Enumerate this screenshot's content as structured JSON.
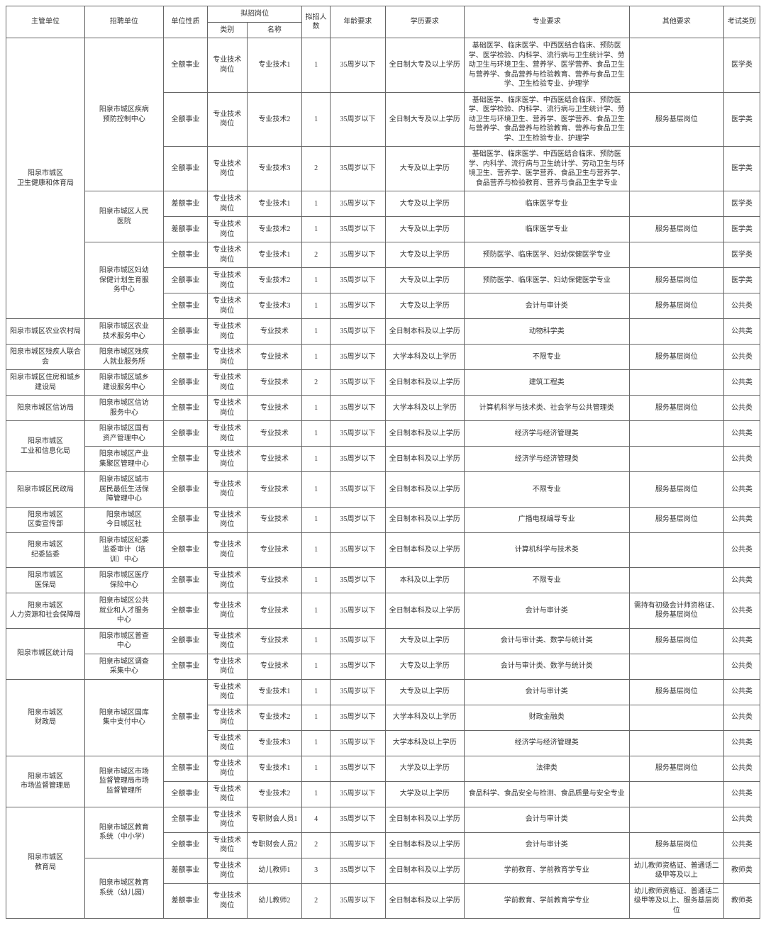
{
  "headers": {
    "dept": "主管单位",
    "unit": "招聘单位",
    "nature": "单位性质",
    "post_group": "拟招岗位",
    "category": "类别",
    "post_name": "名称",
    "num": "拟招人数",
    "age": "年龄要求",
    "edu": "学历要求",
    "major": "专业要求",
    "other": "其他要求",
    "exam": "考试类别"
  },
  "rows": [
    {
      "dept": "阳泉市城区\n卫生健康和体育局",
      "dept_rowspan": 8,
      "unit": "阳泉市城区疾病\n预防控制中心",
      "unit_rowspan": 3,
      "nature": "全额事业",
      "cat": "专业技术\n岗位",
      "post": "专业技术1",
      "num": "1",
      "age": "35周岁以下",
      "edu": "全日制大专及以上学历",
      "major": "基础医学、临床医学、中西医结合临床、预防医学、医学检验、内科学、流行病与卫生统计学、劳动卫生与环境卫生、营养学、医学营养、食品卫生与营养学、食品营养与检验教育、营养与食品卫生学、卫生检验专业、护理学",
      "other": "",
      "exam": "医学类"
    },
    {
      "nature": "全额事业",
      "cat": "专业技术\n岗位",
      "post": "专业技术2",
      "num": "1",
      "age": "35周岁以下",
      "edu": "全日制大专及以上学历",
      "major": "基础医学、临床医学、中西医结合临床、预防医学、医学检验、内科学、流行病与卫生统计学、劳动卫生与环境卫生、营养学、医学营养、食品卫生与营养学、食品营养与检验教育、营养与食品卫生学、卫生检验专业、护理学",
      "other": "服务基层岗位",
      "exam": "医学类"
    },
    {
      "nature": "全额事业",
      "cat": "专业技术\n岗位",
      "post": "专业技术3",
      "num": "2",
      "age": "35周岁以下",
      "edu": "大专及以上学历",
      "major": "基础医学、临床医学、中西医结合临床、预防医学、内科学、流行病与卫生统计学、劳动卫生与环境卫生、营养学、医学营养、食品卫生与营养学、食品营养与检验教育、营养与食品卫生学专业",
      "other": "",
      "exam": "医学类"
    },
    {
      "unit": "阳泉市城区人民\n医院",
      "unit_rowspan": 2,
      "nature": "差额事业",
      "cat": "专业技术\n岗位",
      "post": "专业技术1",
      "num": "1",
      "age": "35周岁以下",
      "edu": "大专及以上学历",
      "major": "临床医学专业",
      "other": "",
      "exam": "医学类"
    },
    {
      "nature": "差额事业",
      "cat": "专业技术\n岗位",
      "post": "专业技术2",
      "num": "1",
      "age": "35周岁以下",
      "edu": "大专及以上学历",
      "major": "临床医学专业",
      "other": "服务基层岗位",
      "exam": "医学类"
    },
    {
      "unit": "阳泉市城区妇幼\n保健计划生育服\n务中心",
      "unit_rowspan": 3,
      "nature": "全额事业",
      "cat": "专业技术\n岗位",
      "post": "专业技术1",
      "num": "2",
      "age": "35周岁以下",
      "edu": "大专及以上学历",
      "major": "预防医学、临床医学、妇幼保健医学专业",
      "other": "",
      "exam": "医学类"
    },
    {
      "nature": "全额事业",
      "cat": "专业技术\n岗位",
      "post": "专业技术2",
      "num": "1",
      "age": "35周岁以下",
      "edu": "大专及以上学历",
      "major": "预防医学、临床医学、妇幼保健医学专业",
      "other": "服务基层岗位",
      "exam": "医学类"
    },
    {
      "nature": "全额事业",
      "cat": "专业技术\n岗位",
      "post": "专业技术3",
      "num": "1",
      "age": "35周岁以下",
      "edu": "大专及以上学历",
      "major": "会计与审计类",
      "other": "服务基层岗位",
      "exam": "公共类"
    },
    {
      "dept": "阳泉市城区农业农村局",
      "dept_rowspan": 1,
      "unit": "阳泉市城区农业\n技术服务中心",
      "unit_rowspan": 1,
      "nature": "全额事业",
      "cat": "专业技术\n岗位",
      "post": "专业技术",
      "num": "1",
      "age": "35周岁以下",
      "edu": "全日制本科及以上学历",
      "major": "动物科学类",
      "other": "",
      "exam": "公共类"
    },
    {
      "dept": "阳泉市城区残疾人联合会",
      "dept_rowspan": 1,
      "unit": "阳泉市城区残疾\n人就业服务所",
      "unit_rowspan": 1,
      "nature": "全额事业",
      "cat": "专业技术\n岗位",
      "post": "专业技术",
      "num": "1",
      "age": "35周岁以下",
      "edu": "大学本科及以上学历",
      "major": "不限专业",
      "other": "服务基层岗位",
      "exam": "公共类"
    },
    {
      "dept": "阳泉市城区住房和城乡建设局",
      "dept_rowspan": 1,
      "unit": "阳泉市城区城乡\n建设服务中心",
      "unit_rowspan": 1,
      "nature": "全额事业",
      "cat": "专业技术\n岗位",
      "post": "专业技术",
      "num": "2",
      "age": "35周岁以下",
      "edu": "全日制本科及以上学历",
      "major": "建筑工程类",
      "other": "",
      "exam": "公共类"
    },
    {
      "dept": "阳泉市城区信访局",
      "dept_rowspan": 1,
      "unit": "阳泉市城区信访\n服务中心",
      "unit_rowspan": 1,
      "nature": "全额事业",
      "cat": "专业技术\n岗位",
      "post": "专业技术",
      "num": "1",
      "age": "35周岁以下",
      "edu": "大学本科及以上学历",
      "major": "计算机科学与技术类、社会学与公共管理类",
      "other": "服务基层岗位",
      "exam": "公共类"
    },
    {
      "dept": "阳泉市城区\n工业和信息化局",
      "dept_rowspan": 2,
      "unit": "阳泉市城区国有\n资产管理中心",
      "unit_rowspan": 1,
      "nature": "全额事业",
      "cat": "专业技术\n岗位",
      "post": "专业技术",
      "num": "1",
      "age": "35周岁以下",
      "edu": "全日制本科及以上学历",
      "major": "经济学与经济管理类",
      "other": "",
      "exam": "公共类"
    },
    {
      "unit": "阳泉市城区产业\n集聚区管理中心",
      "unit_rowspan": 1,
      "nature": "全额事业",
      "cat": "专业技术\n岗位",
      "post": "专业技术",
      "num": "1",
      "age": "35周岁以下",
      "edu": "全日制本科及以上学历",
      "major": "经济学与经济管理类",
      "other": "",
      "exam": "公共类"
    },
    {
      "dept": "阳泉市城区民政局",
      "dept_rowspan": 1,
      "unit": "阳泉市城区城市\n居民最低生活保\n障管理中心",
      "unit_rowspan": 1,
      "nature": "全额事业",
      "cat": "专业技术\n岗位",
      "post": "专业技术",
      "num": "1",
      "age": "35周岁以下",
      "edu": "全日制本科及以上学历",
      "major": "不限专业",
      "other": "服务基层岗位",
      "exam": "公共类"
    },
    {
      "dept": "阳泉市城区\n区委宣传部",
      "dept_rowspan": 1,
      "unit": "阳泉市城区\n今日城区社",
      "unit_rowspan": 1,
      "nature": "全额事业",
      "cat": "专业技术\n岗位",
      "post": "专业技术",
      "num": "1",
      "age": "35周岁以下",
      "edu": "全日制本科及以上学历",
      "major": "广播电视编导专业",
      "other": "服务基层岗位",
      "exam": "公共类"
    },
    {
      "dept": "阳泉市城区\n纪委监委",
      "dept_rowspan": 1,
      "unit": "阳泉市城区纪委\n监委审计（培\n训）中心",
      "unit_rowspan": 1,
      "nature": "全额事业",
      "cat": "专业技术\n岗位",
      "post": "专业技术",
      "num": "1",
      "age": "35周岁以下",
      "edu": "全日制本科及以上学历",
      "major": "计算机科学与技术类",
      "other": "",
      "exam": "公共类"
    },
    {
      "dept": "阳泉市城区\n医保局",
      "dept_rowspan": 1,
      "unit": "阳泉市城区医疗\n保险中心",
      "unit_rowspan": 1,
      "nature": "全额事业",
      "cat": "专业技术\n岗位",
      "post": "专业技术",
      "num": "1",
      "age": "35周岁以下",
      "edu": "本科及以上学历",
      "major": "不限专业",
      "other": "",
      "exam": "公共类"
    },
    {
      "dept": "阳泉市城区\n人力资源和社会保障局",
      "dept_rowspan": 1,
      "unit": "阳泉市城区公共\n就业和人才服务\n中心",
      "unit_rowspan": 1,
      "nature": "全额事业",
      "cat": "专业技术\n岗位",
      "post": "专业技术",
      "num": "1",
      "age": "35周岁以下",
      "edu": "全日制本科及以上学历",
      "major": "会计与审计类",
      "other": "需持有初级会计师资格证、服务基层岗位",
      "exam": "公共类"
    },
    {
      "dept": "阳泉市城区统计局",
      "dept_rowspan": 2,
      "unit": "阳泉市城区普查\n中心",
      "unit_rowspan": 1,
      "nature": "全额事业",
      "cat": "专业技术\n岗位",
      "post": "专业技术",
      "num": "1",
      "age": "35周岁以下",
      "edu": "大专及以上学历",
      "major": "会计与审计类、数学与统计类",
      "other": "服务基层岗位",
      "exam": "公共类"
    },
    {
      "unit": "阳泉市城区调查\n采集中心",
      "unit_rowspan": 1,
      "nature": "全额事业",
      "cat": "专业技术\n岗位",
      "post": "专业技术",
      "num": "1",
      "age": "35周岁以下",
      "edu": "大专及以上学历",
      "major": "会计与审计类、数学与统计类",
      "other": "",
      "exam": "公共类"
    },
    {
      "dept": "阳泉市城区\n财政局",
      "dept_rowspan": 3,
      "unit": "阳泉市城区国库\n集中支付中心",
      "unit_rowspan": 3,
      "nature": "全额事业",
      "nature_rowspan": 3,
      "cat": "专业技术\n岗位",
      "post": "专业技术1",
      "num": "1",
      "age": "35周岁以下",
      "edu": "大专及以上学历",
      "major": "会计与审计类",
      "other": "服务基层岗位",
      "exam": "公共类"
    },
    {
      "cat": "专业技术\n岗位",
      "post": "专业技术2",
      "num": "1",
      "age": "35周岁以下",
      "edu": "大学本科及以上学历",
      "major": "财政金融类",
      "other": "",
      "exam": "公共类"
    },
    {
      "cat": "专业技术\n岗位",
      "post": "专业技术3",
      "num": "1",
      "age": "35周岁以下",
      "edu": "大学本科及以上学历",
      "major": "经济学与经济管理类",
      "other": "",
      "exam": "公共类"
    },
    {
      "dept": "阳泉市城区\n市场监督管理局",
      "dept_rowspan": 2,
      "unit": "阳泉市城区市场\n监督管理局市场\n监督管理所",
      "unit_rowspan": 2,
      "nature": "全额事业",
      "cat": "专业技术\n岗位",
      "post": "专业技术1",
      "num": "1",
      "age": "35周岁以下",
      "edu": "大学及以上学历",
      "major": "法律类",
      "other": "服务基层岗位",
      "exam": "公共类"
    },
    {
      "nature": "全额事业",
      "cat": "专业技术\n岗位",
      "post": "专业技术2",
      "num": "1",
      "age": "35周岁以下",
      "edu": "大学及以上学历",
      "major": "食品科学、食品安全与检测、食品质量与安全专业",
      "other": "",
      "exam": "公共类"
    },
    {
      "dept": "阳泉市城区\n教育局",
      "dept_rowspan": 4,
      "unit": "阳泉市城区教育\n系统（中小学）",
      "unit_rowspan": 2,
      "nature": "全额事业",
      "cat": "专业技术\n岗位",
      "post": "专职财会人员1",
      "num": "4",
      "age": "35周岁以下",
      "edu": "全日制本科及以上学历",
      "major": "会计与审计类",
      "other": "",
      "exam": "公共类"
    },
    {
      "nature": "全额事业",
      "cat": "专业技术\n岗位",
      "post": "专职财会人员2",
      "num": "2",
      "age": "35周岁以下",
      "edu": "全日制本科及以上学历",
      "major": "会计与审计类",
      "other": "服务基层岗位",
      "exam": "公共类"
    },
    {
      "unit": "阳泉市城区教育\n系统（幼儿园）",
      "unit_rowspan": 2,
      "nature": "差额事业",
      "cat": "专业技术\n岗位",
      "post": "幼儿教师1",
      "num": "3",
      "age": "35周岁以下",
      "edu": "全日制本科及以上学历",
      "major": "学前教育、学前教育学专业",
      "other": "幼儿教师资格证、普通话二级甲等及以上",
      "exam": "教师类"
    },
    {
      "nature": "差额事业",
      "cat": "专业技术\n岗位",
      "post": "幼儿教师2",
      "num": "2",
      "age": "35周岁以下",
      "edu": "全日制本科及以上学历",
      "major": "学前教育、学前教育学专业",
      "other": "幼儿教师资格证、普通话二级甲等及以上、服务基层岗位",
      "exam": "教师类"
    }
  ]
}
